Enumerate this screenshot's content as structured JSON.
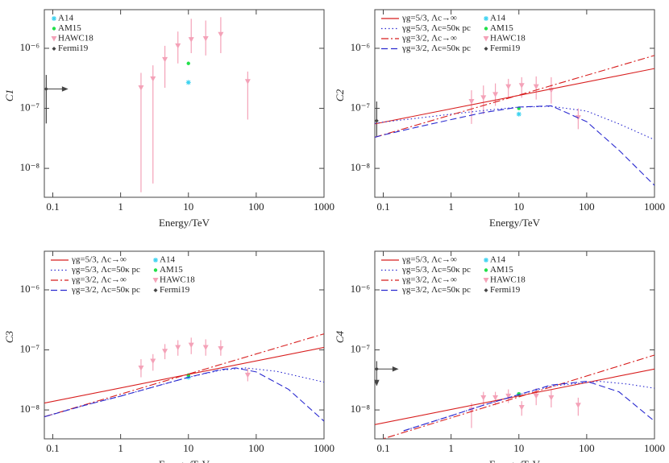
{
  "chart_data": [
    {
      "type": "scatter",
      "ylabel": "C1",
      "xlabel": "Energy/TeV",
      "log_x": true,
      "log_y": true,
      "xlim": [
        0.075,
        1000
      ],
      "ylim": [
        3.3e-09,
        4.4e-06
      ],
      "xticks": [
        0.1,
        1,
        10,
        100,
        1000
      ],
      "yticks": [
        {
          "value": 1e-08,
          "label": "10⁻⁸"
        },
        {
          "value": 1e-07,
          "label": "10⁻⁷"
        },
        {
          "value": 1e-06,
          "label": "10⁻⁶"
        }
      ],
      "series": [
        {
          "name": "A14",
          "color": "#3cd2f0",
          "marker": "star",
          "x": [
            10
          ],
          "values": [
            2.7e-07
          ]
        },
        {
          "name": "AM15",
          "color": "#22e04a",
          "marker": "dot",
          "x": [
            10
          ],
          "values": [
            5.6e-07
          ]
        },
        {
          "name": "HAWC18",
          "color": "#f4a2b8",
          "marker": "triangle",
          "x": [
            2,
            3,
            4.5,
            7,
            11,
            18,
            30,
            75
          ],
          "values": [
            2.2e-07,
            3.1e-07,
            6.5e-07,
            1.1e-06,
            1.4e-06,
            1.45e-06,
            1.7e-06,
            2.8e-07
          ],
          "lower": [
            4e-09,
            5.6e-09,
            2.2e-07,
            5.6e-07,
            8.3e-07,
            7.6e-07,
            8.3e-07,
            6.5e-08
          ],
          "upper": [
            3.9e-07,
            5.2e-07,
            1.1e-06,
            1.9e-06,
            3.1e-06,
            2.9e-06,
            3.3e-06,
            4.1e-07
          ]
        },
        {
          "name": "Fermi19",
          "color": "#444444",
          "marker": "diamond",
          "arrow": "right",
          "x": [
            0.08
          ],
          "values": [
            2.1e-07
          ],
          "lower": [
            5.6e-08
          ],
          "upper": [
            3.6e-07
          ]
        }
      ]
    },
    {
      "type": "line",
      "ylabel": "C2",
      "xlabel": "Energy/TeV",
      "log_x": true,
      "log_y": true,
      "xlim": [
        0.075,
        1000
      ],
      "ylim": [
        3.3e-09,
        4.4e-06
      ],
      "xticks": [
        0.1,
        1,
        10,
        100,
        1000
      ],
      "yticks": [
        {
          "value": 1e-08,
          "label": "10⁻⁸"
        },
        {
          "value": 1e-07,
          "label": "10⁻⁷"
        },
        {
          "value": 1e-06,
          "label": "10⁻⁶"
        }
      ],
      "series": [
        {
          "name": "γg=5/3, Λc→∞",
          "color": "#d81e1e",
          "style": "solid",
          "x": [
            0.075,
            1000
          ],
          "values": [
            5.5e-08,
            4.6e-07
          ]
        },
        {
          "name": "γg=5/3, Λc=50κ pc",
          "color": "#2a2ad0",
          "style": "dotted",
          "x": [
            0.075,
            0.1,
            0.3,
            1,
            3,
            10,
            30,
            100,
            300,
            1000
          ],
          "values": [
            5.6e-08,
            5.9e-08,
            6.8e-08,
            8e-08,
            9.2e-08,
            1.05e-07,
            1.08e-07,
            9e-08,
            5.5e-08,
            3e-08
          ]
        },
        {
          "name": "γg=3/2, Λc→∞",
          "color": "#d81e1e",
          "style": "dashdot",
          "x": [
            0.075,
            1000
          ],
          "values": [
            3.3e-08,
            7.6e-07
          ]
        },
        {
          "name": "γg=3/2, Λc=50κ pc",
          "color": "#2a2ad0",
          "style": "dashed",
          "x": [
            0.075,
            0.1,
            0.3,
            1,
            3,
            10,
            30,
            100,
            300,
            1000
          ],
          "values": [
            3.3e-08,
            3.6e-08,
            4.8e-08,
            6.5e-08,
            8.5e-08,
            1.05e-07,
            1.1e-07,
            6e-08,
            2e-08,
            5.2e-09
          ]
        },
        {
          "name": "A14",
          "color": "#3cd2f0",
          "marker": "star",
          "x": [
            10
          ],
          "values": [
            8e-08
          ]
        },
        {
          "name": "AM15",
          "color": "#22e04a",
          "marker": "dot",
          "x": [
            10
          ],
          "values": [
            1e-07
          ]
        },
        {
          "name": "HAWC18",
          "color": "#f4a2b8",
          "marker": "triangle",
          "x": [
            2,
            3,
            4.5,
            7,
            11,
            18,
            30,
            75
          ],
          "values": [
            1.3e-07,
            1.5e-07,
            1.7e-07,
            2.3e-07,
            2.4e-07,
            2.3e-07,
            2e-07,
            7e-08
          ],
          "lower": [
            5.5e-08,
            8e-08,
            1.1e-07,
            1.5e-07,
            1.5e-07,
            1.4e-07,
            1.2e-07,
            4.5e-08
          ],
          "upper": [
            2e-07,
            2.4e-07,
            2.6e-07,
            3.1e-07,
            3.3e-07,
            3.4e-07,
            3.3e-07,
            1e-07
          ]
        },
        {
          "name": "Fermi19",
          "color": "#444444",
          "marker": "diamond",
          "x": [
            0.08
          ],
          "values": [
            6.2e-08
          ],
          "lower": [
            3.3e-08
          ],
          "upper": [
            1.3e-07
          ]
        }
      ]
    },
    {
      "type": "line",
      "ylabel": "C3",
      "xlabel": "Energy/TeV",
      "log_x": true,
      "log_y": true,
      "xlim": [
        0.075,
        1000
      ],
      "ylim": [
        3.3e-09,
        4.4e-06
      ],
      "xticks": [
        0.1,
        1,
        10,
        100,
        1000
      ],
      "yticks": [
        {
          "value": 1e-08,
          "label": "10⁻⁸"
        },
        {
          "value": 1e-07,
          "label": "10⁻⁷"
        },
        {
          "value": 1e-06,
          "label": "10⁻⁶"
        }
      ],
      "series": [
        {
          "name": "γg=5/3, Λc→∞",
          "color": "#d81e1e",
          "style": "solid",
          "x": [
            0.075,
            1000
          ],
          "values": [
            1.3e-08,
            1.1e-07
          ]
        },
        {
          "name": "γg=5/3, Λc=50κ pc",
          "color": "#2a2ad0",
          "style": "dotted",
          "x": [
            0.075,
            0.3,
            1,
            3,
            10,
            30,
            70,
            200,
            1000
          ],
          "values": [
            7.7e-09,
            1.2e-08,
            1.7e-08,
            2.4e-08,
            3.5e-08,
            4.6e-08,
            5e-08,
            4.4e-08,
            2.9e-08
          ]
        },
        {
          "name": "γg=3/2, Λc→∞",
          "color": "#d81e1e",
          "style": "dashdot",
          "x": [
            0.075,
            1000
          ],
          "values": [
            7.7e-09,
            1.85e-07
          ]
        },
        {
          "name": "γg=3/2, Λc=50κ pc",
          "color": "#2a2ad0",
          "style": "dashed",
          "x": [
            0.075,
            0.3,
            1,
            3,
            10,
            30,
            50,
            100,
            300,
            1000
          ],
          "values": [
            7.7e-09,
            1.2e-08,
            1.7e-08,
            2.4e-08,
            3.5e-08,
            4.7e-08,
            5e-08,
            4.3e-08,
            2.2e-08,
            6.5e-09
          ]
        },
        {
          "name": "A14",
          "color": "#3cd2f0",
          "marker": "star",
          "x": [
            10
          ],
          "values": [
            3.5e-08
          ]
        },
        {
          "name": "AM15",
          "color": "#22e04a",
          "marker": "dot",
          "x": [
            10
          ],
          "values": [
            3.8e-08
          ]
        },
        {
          "name": "HAWC18",
          "color": "#f4a2b8",
          "marker": "triangle",
          "x": [
            2,
            3,
            4.5,
            7,
            11,
            18,
            30,
            75
          ],
          "values": [
            5e-08,
            6.5e-08,
            9.5e-08,
            1.1e-07,
            1.2e-07,
            1.1e-07,
            1.05e-07,
            3.8e-08
          ],
          "lower": [
            3.5e-08,
            4.5e-08,
            7e-08,
            8e-08,
            8.5e-08,
            8e-08,
            8e-08,
            3e-08
          ],
          "upper": [
            7e-08,
            8.5e-08,
            1.25e-07,
            1.45e-07,
            1.6e-07,
            1.5e-07,
            1.45e-07,
            5e-08
          ]
        },
        {
          "name": "Fermi19",
          "color": "#444444",
          "marker": "diamond",
          "x": [],
          "values": []
        }
      ]
    },
    {
      "type": "line",
      "ylabel": "C4",
      "xlabel": "Energy/TeV",
      "log_x": true,
      "log_y": true,
      "xlim": [
        0.075,
        1000
      ],
      "ylim": [
        3.3e-09,
        4.4e-06
      ],
      "xticks": [
        0.1,
        1,
        10,
        100,
        1000
      ],
      "yticks": [
        {
          "value": 1e-08,
          "label": "10⁻⁸"
        },
        {
          "value": 1e-07,
          "label": "10⁻⁷"
        },
        {
          "value": 1e-06,
          "label": "10⁻⁶"
        }
      ],
      "series": [
        {
          "name": "γg=5/3, Λc→∞",
          "color": "#d81e1e",
          "style": "solid",
          "x": [
            0.075,
            1000
          ],
          "values": [
            5.7e-09,
            4.8e-08
          ]
        },
        {
          "name": "γg=5/3, Λc=50κ pc",
          "color": "#2a2ad0",
          "style": "dotted",
          "x": [
            0.2,
            1,
            3,
            10,
            30,
            150,
            400,
            1000
          ],
          "values": [
            4.5e-09,
            8e-09,
            1.2e-08,
            1.8e-08,
            2.5e-08,
            3e-08,
            2.7e-08,
            2.3e-08
          ]
        },
        {
          "name": "γg=3/2, Λc→∞",
          "color": "#d81e1e",
          "style": "dashdot",
          "x": [
            0.075,
            1000
          ],
          "values": [
            3e-09,
            8.2e-08
          ]
        },
        {
          "name": "γg=3/2, Λc=50κ pc",
          "color": "#2a2ad0",
          "style": "dashed",
          "x": [
            0.2,
            1,
            3,
            10,
            30,
            100,
            300,
            1000
          ],
          "values": [
            4.5e-09,
            8e-09,
            1.2e-08,
            1.8e-08,
            2.6e-08,
            3e-08,
            2e-08,
            6.5e-09
          ]
        },
        {
          "name": "A14",
          "color": "#3cd2f0",
          "marker": "star",
          "x": [
            10
          ],
          "values": [
            1.8e-08
          ]
        },
        {
          "name": "AM15",
          "color": "#22e04a",
          "marker": "dot",
          "x": [
            10
          ],
          "values": [
            1.85e-08
          ]
        },
        {
          "name": "HAWC18",
          "color": "#f4a2b8",
          "marker": "triangle",
          "x": [
            2,
            3,
            4.5,
            7,
            11,
            18,
            30,
            75
          ],
          "values": [
            1e-08,
            1.6e-08,
            1.6e-08,
            1.7e-08,
            1.1e-08,
            1.7e-08,
            1.6e-08,
            1.2e-08
          ],
          "lower": [
            5e-09,
            1.2e-08,
            1.2e-08,
            1.3e-08,
            8e-09,
            1.2e-08,
            1.1e-08,
            8e-09
          ],
          "upper": [
            1.3e-08,
            2e-08,
            2e-08,
            2.2e-08,
            1.4e-08,
            2.3e-08,
            2.2e-08,
            1.6e-08
          ]
        },
        {
          "name": "Fermi19",
          "color": "#444444",
          "marker": "diamond",
          "arrow": "right-down",
          "x": [
            0.08
          ],
          "values": [
            4.8e-08
          ],
          "upper": [
            6.5e-08
          ]
        }
      ]
    }
  ]
}
